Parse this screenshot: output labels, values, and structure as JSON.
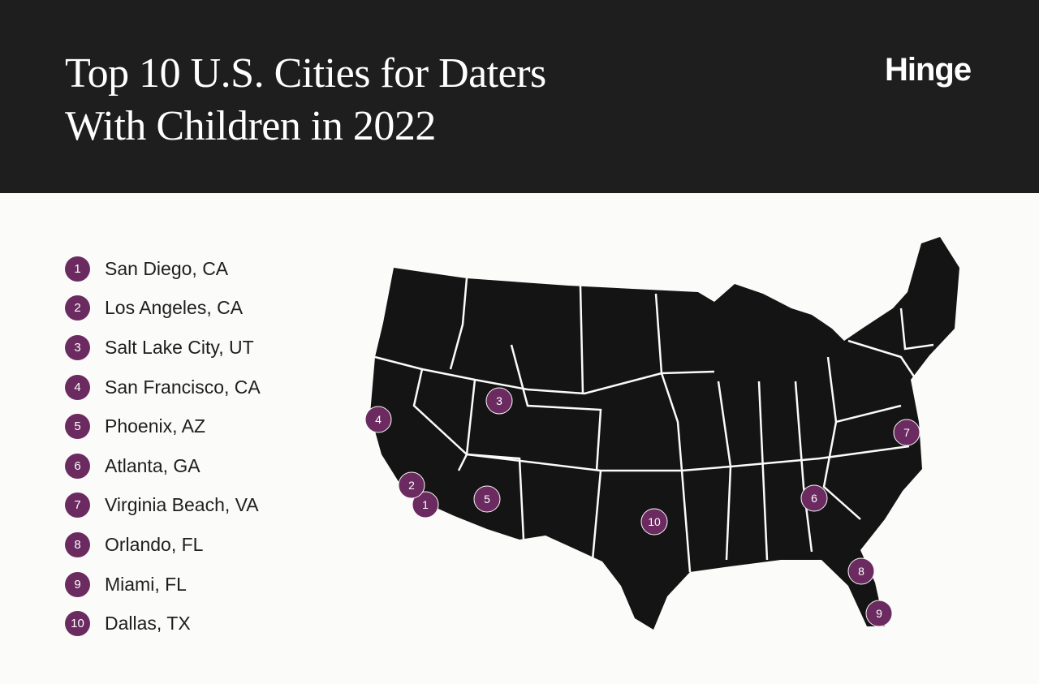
{
  "header": {
    "title": "Top 10 U.S. Cities for Daters With Children in 2022",
    "brand": "Hinge"
  },
  "cities": [
    {
      "rank": "1",
      "name": "San Diego, CA"
    },
    {
      "rank": "2",
      "name": "Los Angeles, CA"
    },
    {
      "rank": "3",
      "name": "Salt Lake City, UT"
    },
    {
      "rank": "4",
      "name": "San Francisco, CA"
    },
    {
      "rank": "5",
      "name": "Phoenix, AZ"
    },
    {
      "rank": "6",
      "name": "Atlanta, GA"
    },
    {
      "rank": "7",
      "name": "Virginia Beach, VA"
    },
    {
      "rank": "8",
      "name": "Orlando, FL"
    },
    {
      "rank": "9",
      "name": "Miami, FL"
    },
    {
      "rank": "10",
      "name": "Dallas, TX"
    }
  ]
}
